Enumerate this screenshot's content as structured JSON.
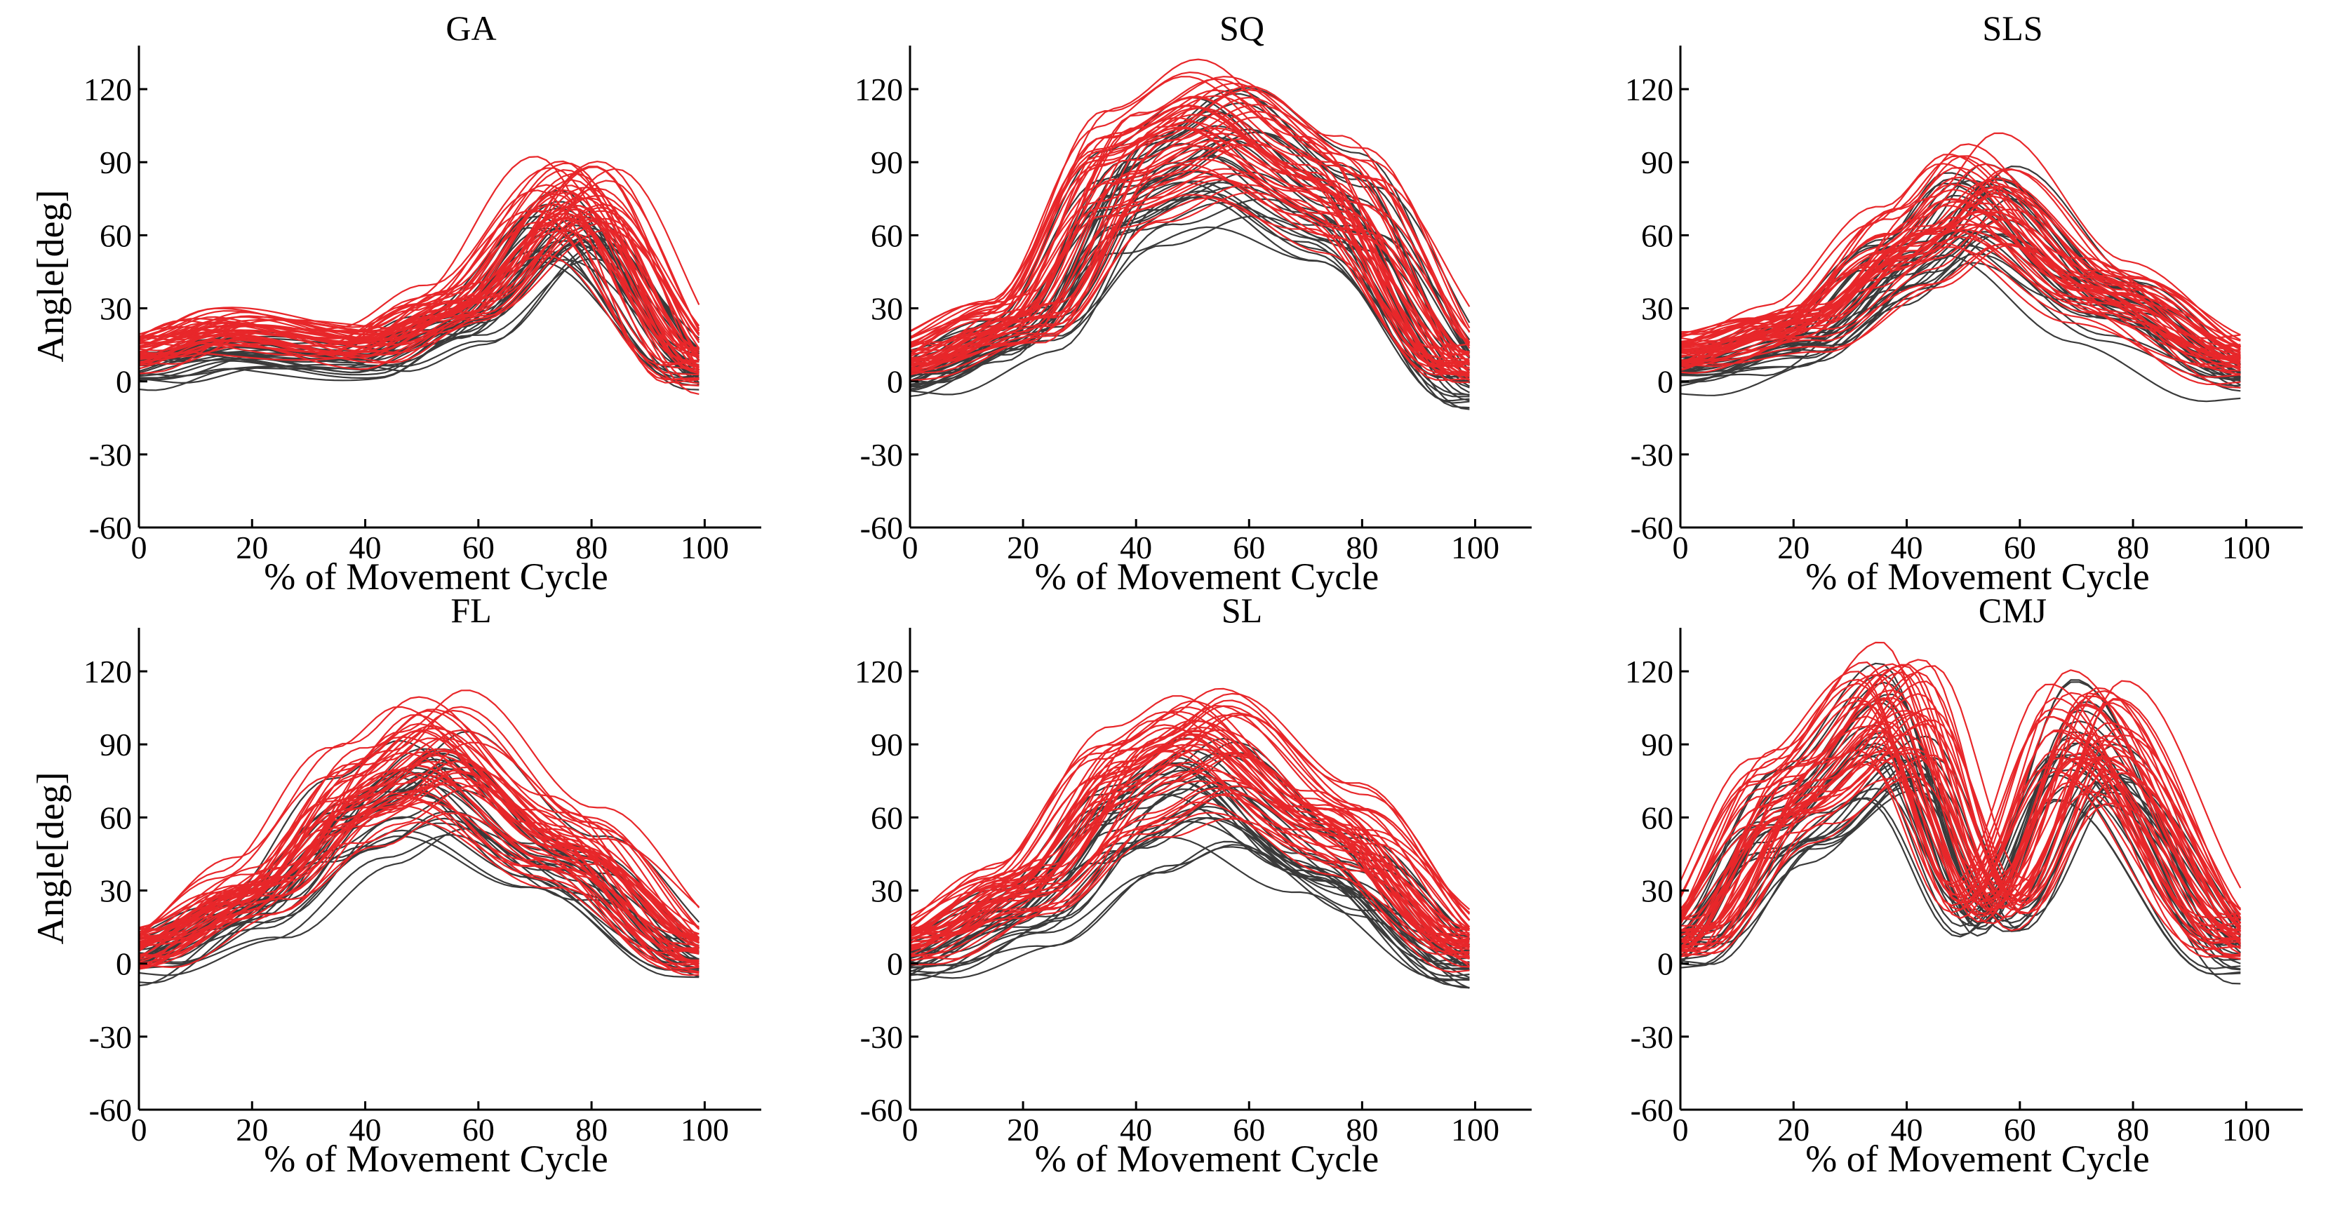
{
  "chart_data": [
    {
      "type": "line",
      "title": "GA",
      "xlabel": "% of Movement Cycle",
      "ylabel": "Angle[deg]",
      "xlim": [
        0,
        110
      ],
      "ylim": [
        -60,
        135
      ],
      "xticks": [
        0,
        20,
        40,
        60,
        80,
        100
      ],
      "yticks": [
        -60,
        -30,
        0,
        30,
        60,
        90,
        120
      ],
      "series": [
        {
          "name": "group-dark",
          "color": "#3a3a3a",
          "count": 28,
          "x": [
            0,
            15,
            40,
            55,
            75,
            100
          ],
          "y": [
            5,
            12,
            8,
            22,
            62,
            2
          ]
        },
        {
          "name": "group-red",
          "color": "#e8272a",
          "count": 45,
          "x": [
            0,
            15,
            40,
            55,
            77,
            100
          ],
          "y": [
            12,
            22,
            15,
            30,
            78,
            5
          ]
        }
      ]
    },
    {
      "type": "line",
      "title": "SQ",
      "xlabel": "% of Movement Cycle",
      "ylabel": "",
      "xlim": [
        0,
        110
      ],
      "ylim": [
        -60,
        135
      ],
      "xticks": [
        0,
        20,
        40,
        60,
        80,
        100
      ],
      "yticks": [
        -60,
        -30,
        0,
        30,
        60,
        90,
        120
      ],
      "series": [
        {
          "name": "group-dark",
          "color": "#3a3a3a",
          "count": 30,
          "x": [
            0,
            20,
            40,
            55,
            75,
            100
          ],
          "y": [
            2,
            20,
            80,
            95,
            70,
            0
          ]
        },
        {
          "name": "group-red",
          "color": "#e8272a",
          "count": 45,
          "x": [
            0,
            20,
            40,
            55,
            75,
            100
          ],
          "y": [
            8,
            25,
            90,
            105,
            80,
            5
          ]
        }
      ]
    },
    {
      "type": "line",
      "title": "SLS",
      "xlabel": "% of Movement Cycle",
      "ylabel": "",
      "xlim": [
        0,
        110
      ],
      "ylim": [
        -60,
        135
      ],
      "xticks": [
        0,
        20,
        40,
        60,
        80,
        100
      ],
      "yticks": [
        -60,
        -30,
        0,
        30,
        60,
        90,
        120
      ],
      "series": [
        {
          "name": "group-dark",
          "color": "#3a3a3a",
          "count": 28,
          "x": [
            0,
            20,
            40,
            52,
            75,
            100
          ],
          "y": [
            2,
            12,
            45,
            68,
            30,
            0
          ]
        },
        {
          "name": "group-red",
          "color": "#e8272a",
          "count": 45,
          "x": [
            0,
            20,
            40,
            52,
            75,
            100
          ],
          "y": [
            12,
            25,
            60,
            80,
            40,
            10
          ]
        }
      ]
    },
    {
      "type": "line",
      "title": "FL",
      "xlabel": "% of Movement Cycle",
      "ylabel": "Angle[deg]",
      "xlim": [
        0,
        110
      ],
      "ylim": [
        -60,
        135
      ],
      "xticks": [
        0,
        20,
        40,
        60,
        80,
        100
      ],
      "yticks": [
        -60,
        -30,
        0,
        30,
        60,
        90,
        120
      ],
      "series": [
        {
          "name": "group-dark",
          "color": "#3a3a3a",
          "count": 28,
          "x": [
            0,
            20,
            40,
            52,
            75,
            100
          ],
          "y": [
            0,
            20,
            60,
            75,
            40,
            0
          ]
        },
        {
          "name": "group-red",
          "color": "#e8272a",
          "count": 45,
          "x": [
            0,
            20,
            40,
            52,
            75,
            100
          ],
          "y": [
            6,
            30,
            72,
            88,
            50,
            5
          ]
        }
      ]
    },
    {
      "type": "line",
      "title": "SL",
      "xlabel": "% of Movement Cycle",
      "ylabel": "",
      "xlim": [
        0,
        110
      ],
      "ylim": [
        -60,
        135
      ],
      "xticks": [
        0,
        20,
        40,
        60,
        80,
        100
      ],
      "yticks": [
        -60,
        -30,
        0,
        30,
        60,
        90,
        120
      ],
      "series": [
        {
          "name": "group-dark",
          "color": "#3a3a3a",
          "count": 28,
          "x": [
            0,
            20,
            40,
            52,
            75,
            100
          ],
          "y": [
            2,
            20,
            60,
            75,
            40,
            0
          ]
        },
        {
          "name": "group-red",
          "color": "#e8272a",
          "count": 45,
          "x": [
            0,
            20,
            40,
            52,
            75,
            100
          ],
          "y": [
            8,
            30,
            75,
            88,
            55,
            6
          ]
        }
      ]
    },
    {
      "type": "line",
      "title": "CMJ",
      "xlabel": "% of Movement Cycle",
      "ylabel": "",
      "xlim": [
        0,
        110
      ],
      "ylim": [
        -60,
        135
      ],
      "xticks": [
        0,
        20,
        40,
        60,
        80,
        100
      ],
      "yticks": [
        -60,
        -30,
        0,
        30,
        60,
        90,
        120
      ],
      "series": [
        {
          "name": "group-dark",
          "color": "#3a3a3a",
          "count": 28,
          "x": [
            0,
            20,
            38,
            55,
            72,
            100
          ],
          "y": [
            5,
            60,
            95,
            20,
            90,
            5
          ]
        },
        {
          "name": "group-red",
          "color": "#e8272a",
          "count": 45,
          "x": [
            0,
            20,
            38,
            55,
            72,
            100
          ],
          "y": [
            10,
            70,
            105,
            25,
            95,
            10
          ]
        }
      ]
    }
  ]
}
